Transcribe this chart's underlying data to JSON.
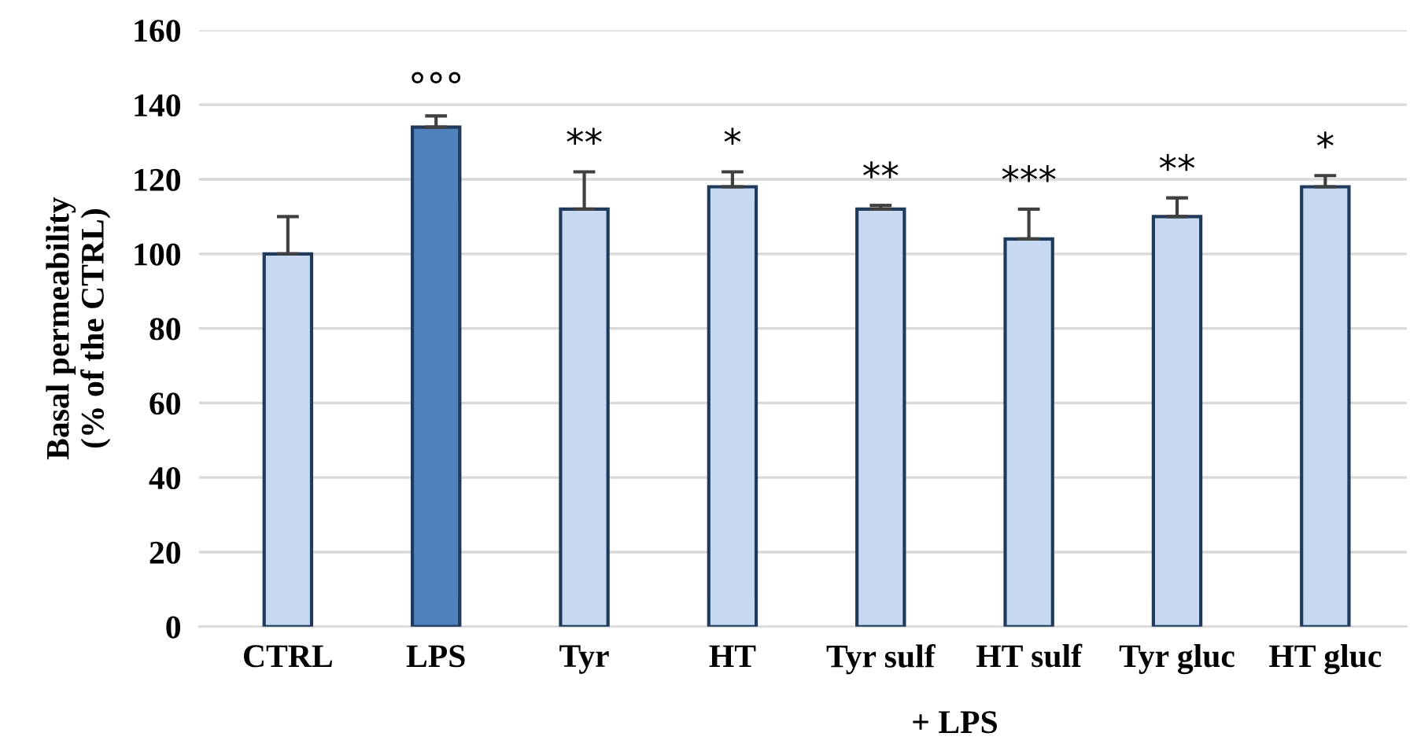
{
  "chart_data": {
    "type": "bar",
    "ylabel": "Basal permeability\n(% of the CTRL)",
    "xlabel": "+ LPS",
    "categories": [
      "CTRL",
      "LPS",
      "Tyr",
      "HT",
      "Tyr sulf",
      "HT sulf",
      "Tyr gluc",
      "HT gluc"
    ],
    "values": [
      100,
      134,
      112,
      118,
      112,
      104,
      110,
      118
    ],
    "errors": [
      [
        100,
        110
      ],
      [
        134,
        137
      ],
      [
        112,
        122
      ],
      [
        118,
        122
      ],
      [
        112,
        113
      ],
      [
        104,
        112
      ],
      [
        110,
        115
      ],
      [
        118,
        121
      ]
    ],
    "colors": [
      "#c6d9f1",
      "#4f81bd",
      "#c6d9f1",
      "#c6d9f1",
      "#c6d9f1",
      "#c6d9f1",
      "#c6d9f1",
      "#c6d9f1"
    ],
    "ylim": [
      0,
      160
    ],
    "yticks": [
      0,
      20,
      40,
      60,
      80,
      100,
      120,
      140,
      160
    ],
    "grid": "y",
    "annotations": [
      "°°°",
      "**",
      "*",
      "**",
      "***",
      "**",
      "*"
    ]
  }
}
